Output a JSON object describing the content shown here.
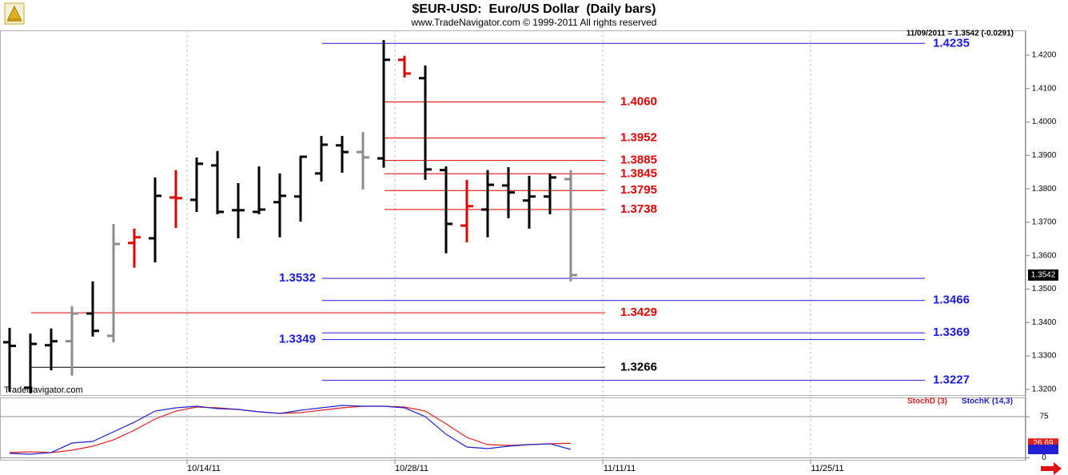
{
  "chart_data": [
    {
      "type": "ohlc",
      "title": "$EUR-USD:  Euro/US Dollar  (Daily bars)",
      "subtitle": "www.TradeNavigator.com © 1999-2011 All rights reserved",
      "annotation": "11/09/2011 = 1.3542 (-0.0291)",
      "watermark": "TradeNavigator.com",
      "open": [
        1.3341,
        1.3205,
        1.3332,
        1.3344,
        1.3427,
        1.336,
        1.3638,
        1.3652,
        1.3774,
        1.3767,
        1.387,
        1.3736,
        1.3731,
        1.376,
        1.3777,
        1.3846,
        1.393,
        1.391,
        1.3891,
        1.4186,
        1.4131,
        1.3856,
        1.369,
        1.3738,
        1.381,
        1.3765,
        1.3777,
        1.3829
      ],
      "high": [
        1.3384,
        1.3367,
        1.3382,
        1.3449,
        1.3523,
        1.3695,
        1.3681,
        1.3834,
        1.3856,
        1.3894,
        1.3913,
        1.3817,
        1.3867,
        1.3846,
        1.3899,
        1.3958,
        1.3958,
        1.397,
        1.4245,
        1.4198,
        1.4169,
        1.3867,
        1.3827,
        1.3856,
        1.3865,
        1.3839,
        1.3846,
        1.3856
      ],
      "low": [
        1.3193,
        1.3188,
        1.3257,
        1.3241,
        1.3358,
        1.3341,
        1.3564,
        1.358,
        1.3683,
        1.3731,
        1.3724,
        1.3652,
        1.3724,
        1.3655,
        1.3702,
        1.3822,
        1.3848,
        1.3798,
        1.3863,
        1.4133,
        1.3827,
        1.3607,
        1.364,
        1.3655,
        1.3712,
        1.3681,
        1.3724,
        1.3523
      ],
      "close": [
        1.333,
        1.3336,
        1.3344,
        1.3427,
        1.3375,
        1.3635,
        1.3655,
        1.3779,
        1.3772,
        1.3875,
        1.3731,
        1.3736,
        1.3738,
        1.3779,
        1.3896,
        1.3932,
        1.391,
        1.3894,
        1.4186,
        1.4145,
        1.3858,
        1.3695,
        1.3748,
        1.3812,
        1.3789,
        1.3777,
        1.3834,
        1.3542
      ],
      "colors": [
        "#000000",
        "#000000",
        "#000000",
        "#8c8c8c",
        "#000000",
        "#8c8c8c",
        "#e00000",
        "#000000",
        "#e00000",
        "#000000",
        "#000000",
        "#000000",
        "#000000",
        "#000000",
        "#000000",
        "#000000",
        "#000000",
        "#8c8c8c",
        "#000000",
        "#e00000",
        "#000000",
        "#000000",
        "#e00000",
        "#000000",
        "#000000",
        "#000000",
        "#000000",
        "#8c8c8c"
      ],
      "ylim": [
        1.3183,
        1.4274
      ],
      "yticks": [
        {
          "value": 1.42,
          "label": "1.4200"
        },
        {
          "value": 1.41,
          "label": "1.4100"
        },
        {
          "value": 1.4,
          "label": "1.4000"
        },
        {
          "value": 1.39,
          "label": "1.3900"
        },
        {
          "value": 1.38,
          "label": "1.3800"
        },
        {
          "value": 1.37,
          "label": "1.3700"
        },
        {
          "value": 1.36,
          "label": "1.3600"
        },
        {
          "value": 1.35,
          "label": "1.3500"
        },
        {
          "value": 1.34,
          "label": "1.3400"
        },
        {
          "value": 1.33,
          "label": "1.3300"
        },
        {
          "value": 1.32,
          "label": "1.3200"
        }
      ],
      "levels": [
        {
          "value": 1.4235,
          "color": "#1c1cdc"
        },
        {
          "value": 1.406,
          "label": "1.4060",
          "color": "#e00000"
        },
        {
          "value": 1.3952,
          "color": "#e00000"
        },
        {
          "value": 1.3885,
          "color": "#e00000"
        },
        {
          "value": 1.3845,
          "color": "#e00000"
        },
        {
          "value": 1.3795,
          "color": "#e00000"
        },
        {
          "value": 1.3738,
          "color": "#e00000"
        },
        {
          "value": 1.3532,
          "color": "#1c1cdc"
        },
        {
          "value": 1.3466,
          "color": "#1c1cdc"
        },
        {
          "value": 1.3429,
          "color": "#e00000"
        },
        {
          "value": 1.3369,
          "color": "#1c1cdc"
        },
        {
          "value": 1.3349,
          "color": "#1c1cdc"
        },
        {
          "value": 1.3266,
          "color": "#000000"
        },
        {
          "value": 1.3227,
          "color": "#1c1cdc"
        }
      ]
    },
    {
      "type": "line",
      "categories": [
        null,
        null,
        null,
        null,
        null,
        null,
        null,
        null,
        null,
        "10/14/11",
        null,
        null,
        null,
        null,
        null,
        null,
        null,
        null,
        null,
        "10/28/11",
        null,
        null,
        null,
        null,
        null,
        null,
        null,
        null,
        null,
        "11/11/11",
        null,
        null,
        null,
        null,
        null,
        null,
        null,
        null,
        null,
        "11/25/11"
      ],
      "series": [
        {
          "name": "StochD (3)",
          "color": "#e02020",
          "values": [
            9.6,
            11.0,
            9.6,
            13.9,
            21.2,
            32.8,
            50.3,
            70.7,
            85.2,
            92.5,
            91.1,
            88.2,
            83.8,
            80.9,
            82.3,
            86.7,
            91.1,
            94.0,
            94.0,
            92.5,
            85.2,
            61.9,
            37.2,
            24.1,
            22.7,
            24.1,
            25.6,
            26.69,
            null,
            null,
            null,
            null,
            null,
            null,
            null,
            null,
            null,
            null,
            null,
            null
          ]
        },
        {
          "name": "StochK (14,3)",
          "color": "#2020d0",
          "values": [
            8.1,
            6.6,
            9.6,
            27.0,
            29.9,
            47.4,
            64.9,
            85.2,
            91.1,
            94.0,
            89.6,
            88.2,
            83.8,
            80.9,
            86.7,
            91.1,
            95.4,
            94.0,
            94.0,
            91.1,
            75.1,
            43.0,
            19.7,
            16.8,
            21.2,
            24.1,
            25.6,
            15.4,
            null,
            null,
            null,
            null,
            null,
            null,
            null,
            null,
            null,
            null,
            null,
            null
          ]
        }
      ],
      "ylim": [
        -5,
        110
      ],
      "yticks": [
        0,
        75
      ]
    }
  ]
}
